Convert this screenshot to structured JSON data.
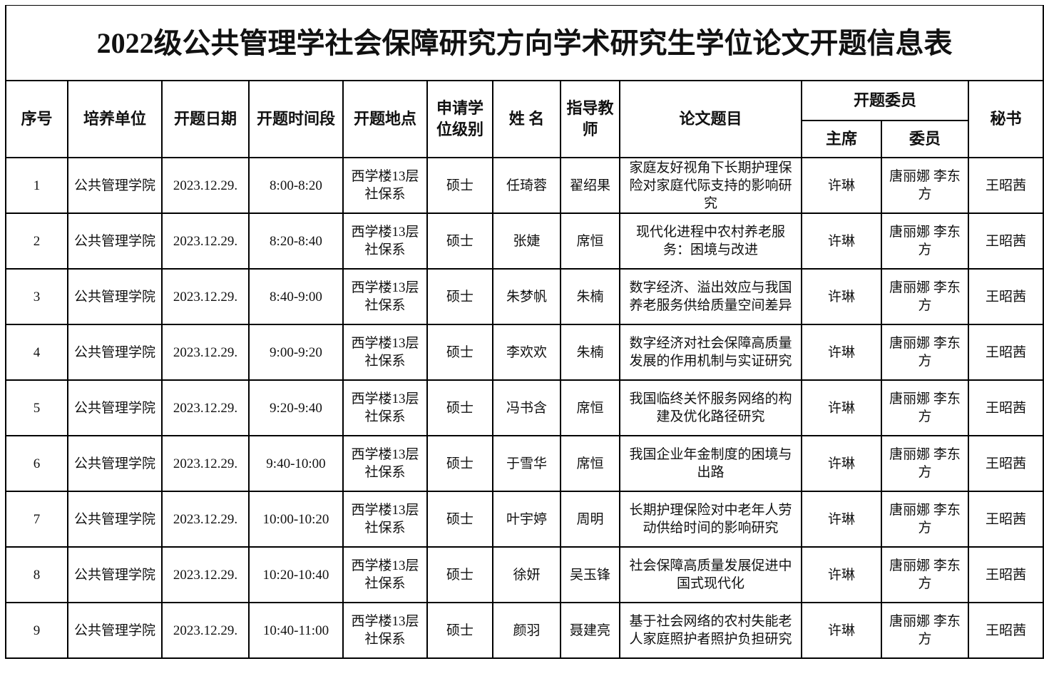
{
  "title": "2022级公共管理学社会保障研究方向学术研究生学位论文开题信息表",
  "headers": {
    "seq": "序号",
    "unit": "培养单位",
    "date": "开题日期",
    "time": "开题时间段",
    "place": "开题地点",
    "level": "申请学位级别",
    "name": "姓 名",
    "advisor": "指导教师",
    "topic": "论文题目",
    "committee": "开题委员",
    "chair": "主席",
    "members": "委员",
    "secretary": "秘书"
  },
  "rows": [
    {
      "seq": "1",
      "unit": "公共管理学院",
      "date": "2023.12.29.",
      "time": "8:00-8:20",
      "place": "西学楼13层社保系",
      "level": "硕士",
      "name": "任琦蓉",
      "advisor": "翟绍果",
      "topic": "家庭友好视角下长期护理保险对家庭代际支持的影响研究",
      "chair": "许琳",
      "members": "唐丽娜 李东方",
      "secretary": "王昭茜"
    },
    {
      "seq": "2",
      "unit": "公共管理学院",
      "date": "2023.12.29.",
      "time": "8:20-8:40",
      "place": "西学楼13层社保系",
      "level": "硕士",
      "name": "张婕",
      "advisor": "席恒",
      "topic": "现代化进程中农村养老服务：困境与改进",
      "chair": "许琳",
      "members": "唐丽娜 李东方",
      "secretary": "王昭茜"
    },
    {
      "seq": "3",
      "unit": "公共管理学院",
      "date": "2023.12.29.",
      "time": "8:40-9:00",
      "place": "西学楼13层社保系",
      "level": "硕士",
      "name": "朱梦帆",
      "advisor": "朱楠",
      "topic": "数字经济、溢出效应与我国养老服务供给质量空间差异",
      "chair": "许琳",
      "members": "唐丽娜 李东方",
      "secretary": "王昭茜"
    },
    {
      "seq": "4",
      "unit": "公共管理学院",
      "date": "2023.12.29.",
      "time": "9:00-9:20",
      "place": "西学楼13层社保系",
      "level": "硕士",
      "name": "李欢欢",
      "advisor": "朱楠",
      "topic": "数字经济对社会保障高质量发展的作用机制与实证研究",
      "chair": "许琳",
      "members": "唐丽娜 李东方",
      "secretary": "王昭茜"
    },
    {
      "seq": "5",
      "unit": "公共管理学院",
      "date": "2023.12.29.",
      "time": "9:20-9:40",
      "place": "西学楼13层社保系",
      "level": "硕士",
      "name": "冯书含",
      "advisor": "席恒",
      "topic": "我国临终关怀服务网络的构建及优化路径研究",
      "chair": "许琳",
      "members": "唐丽娜 李东方",
      "secretary": "王昭茜"
    },
    {
      "seq": "6",
      "unit": "公共管理学院",
      "date": "2023.12.29.",
      "time": "9:40-10:00",
      "place": "西学楼13层社保系",
      "level": "硕士",
      "name": "于雪华",
      "advisor": "席恒",
      "topic": "我国企业年金制度的困境与出路",
      "chair": "许琳",
      "members": "唐丽娜 李东方",
      "secretary": "王昭茜"
    },
    {
      "seq": "7",
      "unit": "公共管理学院",
      "date": "2023.12.29.",
      "time": "10:00-10:20",
      "place": "西学楼13层社保系",
      "level": "硕士",
      "name": "叶宇婷",
      "advisor": "周明",
      "topic": "长期护理保险对中老年人劳动供给时间的影响研究",
      "chair": "许琳",
      "members": "唐丽娜 李东方",
      "secretary": "王昭茜"
    },
    {
      "seq": "8",
      "unit": "公共管理学院",
      "date": "2023.12.29.",
      "time": "10:20-10:40",
      "place": "西学楼13层社保系",
      "level": "硕士",
      "name": "徐妍",
      "advisor": "吴玉锋",
      "topic": "社会保障高质量发展促进中国式现代化",
      "chair": "许琳",
      "members": "唐丽娜 李东方",
      "secretary": "王昭茜"
    },
    {
      "seq": "9",
      "unit": "公共管理学院",
      "date": "2023.12.29.",
      "time": "10:40-11:00",
      "place": "西学楼13层社保系",
      "level": "硕士",
      "name": "颜羽",
      "advisor": "聂建亮",
      "topic": "基于社会网络的农村失能老人家庭照护者照护负担研究",
      "chair": "许琳",
      "members": "唐丽娜 李东方",
      "secretary": "王昭茜"
    }
  ]
}
